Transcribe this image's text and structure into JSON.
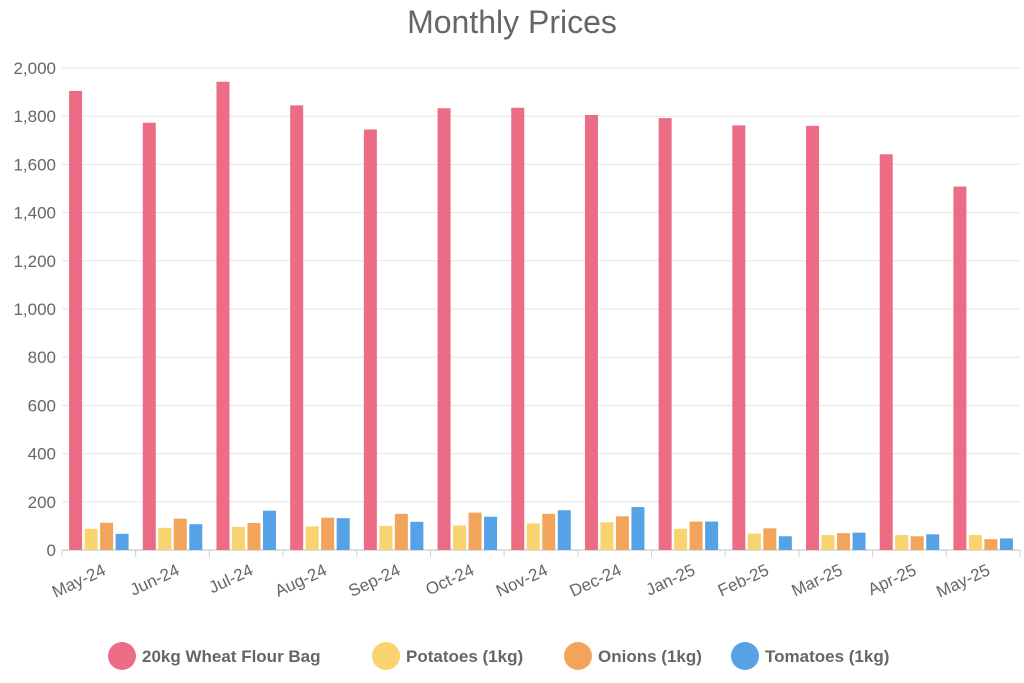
{
  "chart_data": {
    "type": "bar",
    "title": "Monthly Prices",
    "xlabel": "",
    "ylabel": "",
    "ylim": [
      0,
      2000
    ],
    "yticks": [
      "0",
      "200",
      "400",
      "600",
      "800",
      "1,000",
      "1,200",
      "1,400",
      "1,600",
      "1,800",
      "2,000"
    ],
    "ytick_values": [
      0,
      200,
      400,
      600,
      800,
      1000,
      1200,
      1400,
      1600,
      1800,
      2000
    ],
    "grid": true,
    "legend_position": "bottom",
    "categories": [
      "May-24",
      "Jun-24",
      "Jul-24",
      "Aug-24",
      "Sep-24",
      "Oct-24",
      "Nov-24",
      "Dec-24",
      "Jan-25",
      "Feb-25",
      "Mar-25",
      "Apr-25",
      "May-25"
    ],
    "series": [
      {
        "name": "20kg Wheat Flour Bag",
        "color": "#ec6c85",
        "values": [
          1905,
          1773,
          1943,
          1845,
          1745,
          1833,
          1835,
          1805,
          1792,
          1762,
          1760,
          1642,
          1508
        ]
      },
      {
        "name": "Potatoes (1kg)",
        "color": "#f8d36f",
        "values": [
          88,
          92,
          96,
          98,
          100,
          102,
          110,
          115,
          88,
          68,
          62,
          62,
          62
        ]
      },
      {
        "name": "Onions (1kg)",
        "color": "#f2a55a",
        "values": [
          113,
          130,
          112,
          134,
          150,
          155,
          150,
          140,
          118,
          90,
          70,
          57,
          45
        ]
      },
      {
        "name": "Tomatoes (1kg)",
        "color": "#55a2e6",
        "values": [
          67,
          107,
          163,
          132,
          117,
          138,
          165,
          178,
          118,
          57,
          72,
          65,
          48
        ]
      }
    ]
  }
}
